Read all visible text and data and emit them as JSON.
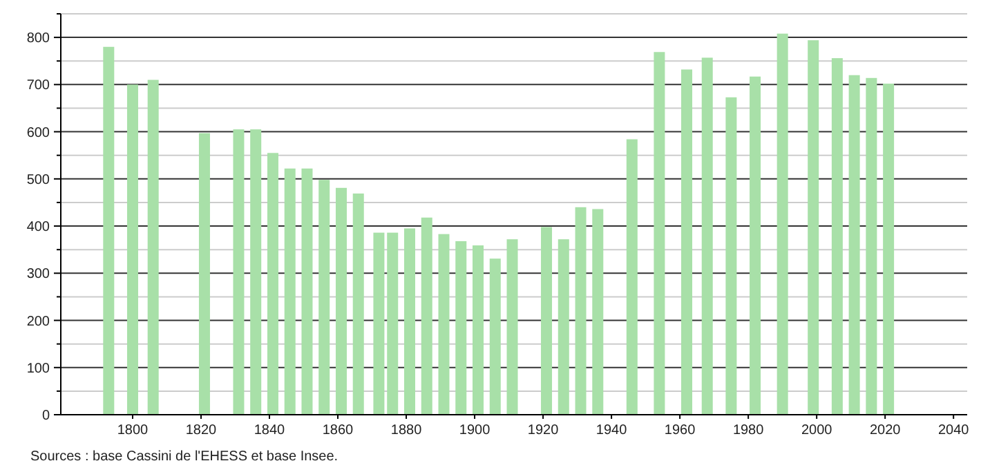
{
  "chart_data": {
    "type": "bar",
    "x": [
      1793,
      1800,
      1806,
      1821,
      1831,
      1836,
      1841,
      1846,
      1851,
      1856,
      1861,
      1866,
      1872,
      1876,
      1881,
      1886,
      1891,
      1896,
      1901,
      1906,
      1911,
      1921,
      1926,
      1931,
      1936,
      1946,
      1954,
      1962,
      1968,
      1975,
      1982,
      1990,
      1999,
      2006,
      2011,
      2016,
      2021
    ],
    "values": [
      780,
      700,
      710,
      597,
      605,
      605,
      555,
      522,
      522,
      498,
      481,
      469,
      386,
      386,
      395,
      418,
      383,
      368,
      359,
      331,
      372,
      398,
      372,
      440,
      436,
      584,
      769,
      732,
      757,
      673,
      717,
      808,
      794,
      756,
      720,
      714,
      702
    ],
    "color": "#a8e0a8",
    "xlim": [
      1779,
      2044
    ],
    "xticks": [
      1800,
      1820,
      1840,
      1860,
      1880,
      1900,
      1920,
      1940,
      1960,
      1980,
      2000,
      2020,
      2040
    ],
    "ylim": [
      0,
      850
    ],
    "yticks": [
      0,
      {
        "value": 50,
        "label": null
      },
      100,
      {
        "value": 150,
        "label": null
      },
      200,
      {
        "value": 250,
        "label": null
      },
      300,
      {
        "value": 350,
        "label": null
      },
      400,
      {
        "value": 450,
        "label": null
      },
      500,
      {
        "value": 550,
        "label": null
      },
      600,
      {
        "value": 650,
        "label": null
      },
      700,
      {
        "value": 750,
        "label": null
      },
      800,
      {
        "value": 850,
        "label": null
      }
    ],
    "grid": "y",
    "annotations": [
      "Sources : base Cassini de l'EHESS et base Insee."
    ]
  }
}
